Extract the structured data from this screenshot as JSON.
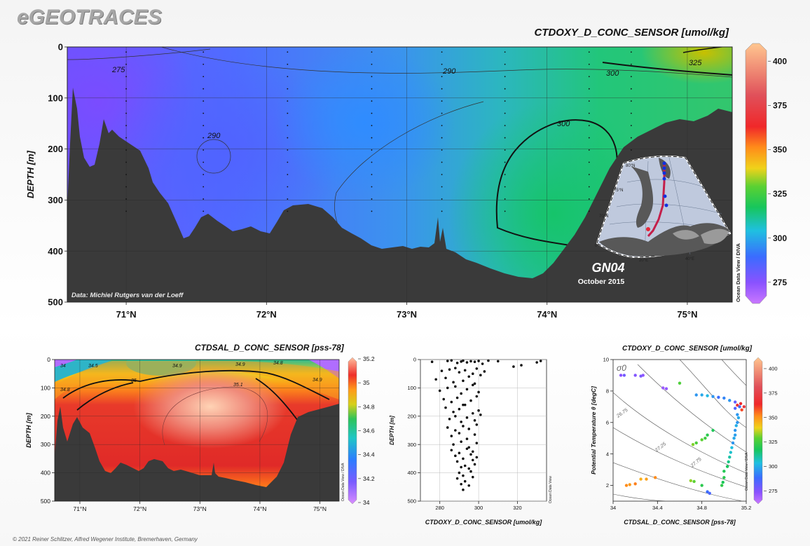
{
  "logo": "eGEOTRACES",
  "credit": "© 2021 Reiner Schlitzer, Alfred Wegener Institute, Bremerhaven, Germany",
  "main_section": {
    "title": "CTDOXY_D_CONC_SENSOR [umol/kg]",
    "ylabel": "DEPTH [m]",
    "data_credit": "Data: Michiel Rutgers van der Loeff",
    "cruise": "GN04",
    "date": "October 2015",
    "odv_label": "Ocean Data View / DIVA",
    "contour_labels": [
      "275",
      "290",
      "290",
      "300",
      "300",
      "325"
    ],
    "map_lat_labels": [
      "80°N",
      "75°N",
      "70°N"
    ],
    "map_lon_labels": [
      "0°",
      "20°E",
      "40°E"
    ]
  },
  "colors": {
    "land": "#3a3a3a",
    "map_land": "#585858",
    "track": "#c41f4a",
    "stations": "#1030e0"
  },
  "chart_data": [
    {
      "type": "heatmap",
      "name": "oxygen-section",
      "title": "CTDOXY_D_CONC_SENSOR [umol/kg]",
      "ylabel": "DEPTH [m]",
      "xlim": [
        70.58,
        75.32
      ],
      "ylim": [
        500,
        0
      ],
      "x_ticks": [
        71,
        72,
        73,
        74,
        75
      ],
      "x_tick_labels": [
        "71°N",
        "72°N",
        "73°N",
        "74°N",
        "75°N"
      ],
      "y_ticks": [
        0,
        100,
        200,
        300,
        400,
        500
      ],
      "y_tick_labels": [
        "0",
        "100",
        "200",
        "300",
        "400",
        "500"
      ],
      "colorbar": {
        "min": 263,
        "max": 410,
        "ticks": [
          275,
          300,
          325,
          350,
          375,
          400
        ],
        "tick_labels": [
          "275",
          "300",
          "325",
          "350",
          "375",
          "400"
        ]
      },
      "station_lats": [
        71.0,
        71.55,
        72.15,
        72.75,
        73.25,
        73.7,
        74.3,
        74.6
      ]
    },
    {
      "type": "heatmap",
      "name": "salinity-section",
      "title": "CTDSAL_D_CONC_SENSOR [pss-78]",
      "ylabel": "DEPTH [m]",
      "xlim": [
        70.58,
        75.32
      ],
      "ylim": [
        500,
        0
      ],
      "x_ticks": [
        71,
        72,
        73,
        74,
        75
      ],
      "x_tick_labels": [
        "71°N",
        "72°N",
        "73°N",
        "74°N",
        "75°N"
      ],
      "y_ticks": [
        0,
        100,
        200,
        300,
        400,
        500
      ],
      "y_tick_labels": [
        "0",
        "100",
        "200",
        "300",
        "400",
        "500"
      ],
      "contour_labels": [
        "34",
        "34.5",
        "34.8",
        "34.9",
        "35",
        "35.1",
        "34.9",
        "34.8",
        "34.9"
      ],
      "colorbar": {
        "min": 34,
        "max": 35.2,
        "ticks": [
          34,
          34.2,
          34.4,
          34.6,
          34.8,
          35,
          35.2
        ],
        "tick_labels": [
          "34",
          "34.2",
          "34.4",
          "34.6",
          "34.8",
          "35",
          "35.2"
        ]
      }
    },
    {
      "type": "scatter",
      "name": "oxygen-depth-profile",
      "xlabel": "CTDOXY_D_CONC_SENSOR [umol/kg]",
      "ylabel": "DEPTH [m]",
      "xlim": [
        270,
        335
      ],
      "ylim": [
        500,
        0
      ],
      "x_ticks": [
        280,
        300,
        320
      ],
      "x_tick_labels": [
        "280",
        "300",
        "320"
      ],
      "y_ticks": [
        0,
        100,
        200,
        300,
        400,
        500
      ],
      "y_tick_labels": [
        "0",
        "100",
        "200",
        "300",
        "400",
        "500"
      ],
      "x": [
        276,
        284,
        286,
        289,
        291,
        292,
        294,
        296,
        298,
        300,
        302,
        305,
        310,
        318,
        322,
        330,
        332,
        281,
        285,
        288,
        290,
        293,
        297,
        299,
        303,
        278,
        283,
        287,
        292,
        295,
        298,
        301,
        280,
        284,
        288,
        291,
        294,
        297,
        300,
        282,
        286,
        289,
        292,
        296,
        299,
        283,
        287,
        290,
        293,
        297,
        300,
        285,
        288,
        291,
        294,
        298,
        301,
        284,
        288,
        292,
        295,
        299,
        286,
        290,
        294,
        298,
        287,
        291,
        295,
        299,
        286,
        290,
        294,
        297,
        288,
        292,
        296,
        299,
        289,
        293,
        297,
        291,
        295,
        298,
        290,
        292,
        296,
        289,
        293,
        297,
        291,
        295,
        292
      ],
      "y": [
        8,
        5,
        3,
        12,
        7,
        4,
        10,
        6,
        8,
        5,
        15,
        4,
        6,
        25,
        20,
        10,
        5,
        40,
        35,
        30,
        45,
        38,
        50,
        32,
        42,
        70,
        65,
        80,
        75,
        60,
        85,
        55,
        110,
        100,
        95,
        120,
        105,
        90,
        115,
        140,
        150,
        135,
        160,
        145,
        130,
        170,
        185,
        175,
        160,
        190,
        180,
        210,
        200,
        220,
        205,
        215,
        195,
        240,
        250,
        235,
        245,
        230,
        270,
        260,
        280,
        265,
        300,
        290,
        310,
        295,
        320,
        330,
        315,
        325,
        340,
        350,
        335,
        345,
        360,
        375,
        355,
        380,
        385,
        370,
        400,
        410,
        395,
        420,
        430,
        415,
        440,
        445,
        460
      ],
      "odv_label": "Ocean Data View"
    },
    {
      "type": "scatter",
      "name": "theta-salinity-diagram",
      "title": "CTDOXY_D_CONC_SENSOR [umol/kg]",
      "xlabel": "CTDSAL_D_CONC_SENSOR [pss-78]",
      "ylabel": "Potential Temperature θ [degC]",
      "xlim": [
        34,
        35.2
      ],
      "ylim": [
        1,
        10
      ],
      "x_ticks": [
        34,
        34.4,
        34.8,
        35.2
      ],
      "x_tick_labels": [
        "34",
        "34.4",
        "34.8",
        "35.2"
      ],
      "y_ticks": [
        2,
        4,
        6,
        8,
        10
      ],
      "y_tick_labels": [
        "2",
        "4",
        "6",
        "8",
        "10"
      ],
      "isopycnal_label": "σ0",
      "isopycnal_values": [
        "26.75",
        "27.25",
        "27.75"
      ],
      "colorbar": {
        "min": 263,
        "max": 410,
        "ticks": [
          275,
          300,
          325,
          350,
          375,
          400
        ],
        "tick_labels": [
          "275",
          "300",
          "325",
          "350",
          "375",
          "400"
        ]
      },
      "points": [
        {
          "s": 34.07,
          "t": 9.0,
          "o": 275
        },
        {
          "s": 34.1,
          "t": 9.0,
          "o": 278
        },
        {
          "s": 34.2,
          "t": 9.0,
          "o": 276
        },
        {
          "s": 34.27,
          "t": 9.0,
          "o": 274
        },
        {
          "s": 34.25,
          "t": 8.95,
          "o": 277
        },
        {
          "s": 34.45,
          "t": 8.2,
          "o": 272
        },
        {
          "s": 34.48,
          "t": 8.15,
          "o": 273
        },
        {
          "s": 34.6,
          "t": 8.5,
          "o": 310
        },
        {
          "s": 34.75,
          "t": 7.75,
          "o": 290
        },
        {
          "s": 34.8,
          "t": 7.75,
          "o": 292
        },
        {
          "s": 34.85,
          "t": 7.7,
          "o": 294
        },
        {
          "s": 34.9,
          "t": 7.65,
          "o": 290
        },
        {
          "s": 34.95,
          "t": 7.6,
          "o": 285
        },
        {
          "s": 35.0,
          "t": 7.55,
          "o": 288
        },
        {
          "s": 35.05,
          "t": 7.4,
          "o": 290
        },
        {
          "s": 35.1,
          "t": 7.3,
          "o": 280
        },
        {
          "s": 35.12,
          "t": 7.1,
          "o": 350
        },
        {
          "s": 35.15,
          "t": 7.2,
          "o": 345
        },
        {
          "s": 35.18,
          "t": 7.0,
          "o": 355
        },
        {
          "s": 35.16,
          "t": 6.8,
          "o": 340
        },
        {
          "s": 35.14,
          "t": 7.0,
          "o": 285
        },
        {
          "s": 35.1,
          "t": 6.9,
          "o": 282
        },
        {
          "s": 35.12,
          "t": 6.5,
          "o": 290
        },
        {
          "s": 35.13,
          "t": 6.3,
          "o": 292
        },
        {
          "s": 35.12,
          "t": 6.0,
          "o": 290
        },
        {
          "s": 35.11,
          "t": 5.8,
          "o": 293
        },
        {
          "s": 35.1,
          "t": 5.5,
          "o": 290
        },
        {
          "s": 35.1,
          "t": 5.2,
          "o": 291
        },
        {
          "s": 35.09,
          "t": 5.0,
          "o": 292
        },
        {
          "s": 35.08,
          "t": 4.7,
          "o": 290
        },
        {
          "s": 35.07,
          "t": 4.4,
          "o": 295
        },
        {
          "s": 35.06,
          "t": 4.1,
          "o": 296
        },
        {
          "s": 35.05,
          "t": 3.8,
          "o": 298
        },
        {
          "s": 35.04,
          "t": 3.5,
          "o": 300
        },
        {
          "s": 35.03,
          "t": 3.2,
          "o": 302
        },
        {
          "s": 35.0,
          "t": 2.9,
          "o": 304
        },
        {
          "s": 35.0,
          "t": 2.5,
          "o": 305
        },
        {
          "s": 34.99,
          "t": 2.2,
          "o": 303
        },
        {
          "s": 34.98,
          "t": 2.0,
          "o": 306
        },
        {
          "s": 34.83,
          "t": 5.0,
          "o": 308
        },
        {
          "s": 34.8,
          "t": 4.9,
          "o": 312
        },
        {
          "s": 34.75,
          "t": 4.7,
          "o": 310
        },
        {
          "s": 34.72,
          "t": 4.6,
          "o": 314
        },
        {
          "s": 34.85,
          "t": 5.2,
          "o": 305
        },
        {
          "s": 34.9,
          "t": 5.5,
          "o": 303
        },
        {
          "s": 34.7,
          "t": 2.3,
          "o": 315
        },
        {
          "s": 34.73,
          "t": 2.25,
          "o": 312
        },
        {
          "s": 34.8,
          "t": 2.0,
          "o": 305
        },
        {
          "s": 34.85,
          "t": 1.6,
          "o": 285
        },
        {
          "s": 34.87,
          "t": 1.5,
          "o": 283
        },
        {
          "s": 34.12,
          "t": 2.0,
          "o": 330
        },
        {
          "s": 34.15,
          "t": 2.05,
          "o": 328
        },
        {
          "s": 34.2,
          "t": 2.1,
          "o": 332
        },
        {
          "s": 34.25,
          "t": 2.4,
          "o": 325
        },
        {
          "s": 34.3,
          "t": 2.4,
          "o": 327
        },
        {
          "s": 34.38,
          "t": 2.5,
          "o": 330
        }
      ]
    }
  ]
}
